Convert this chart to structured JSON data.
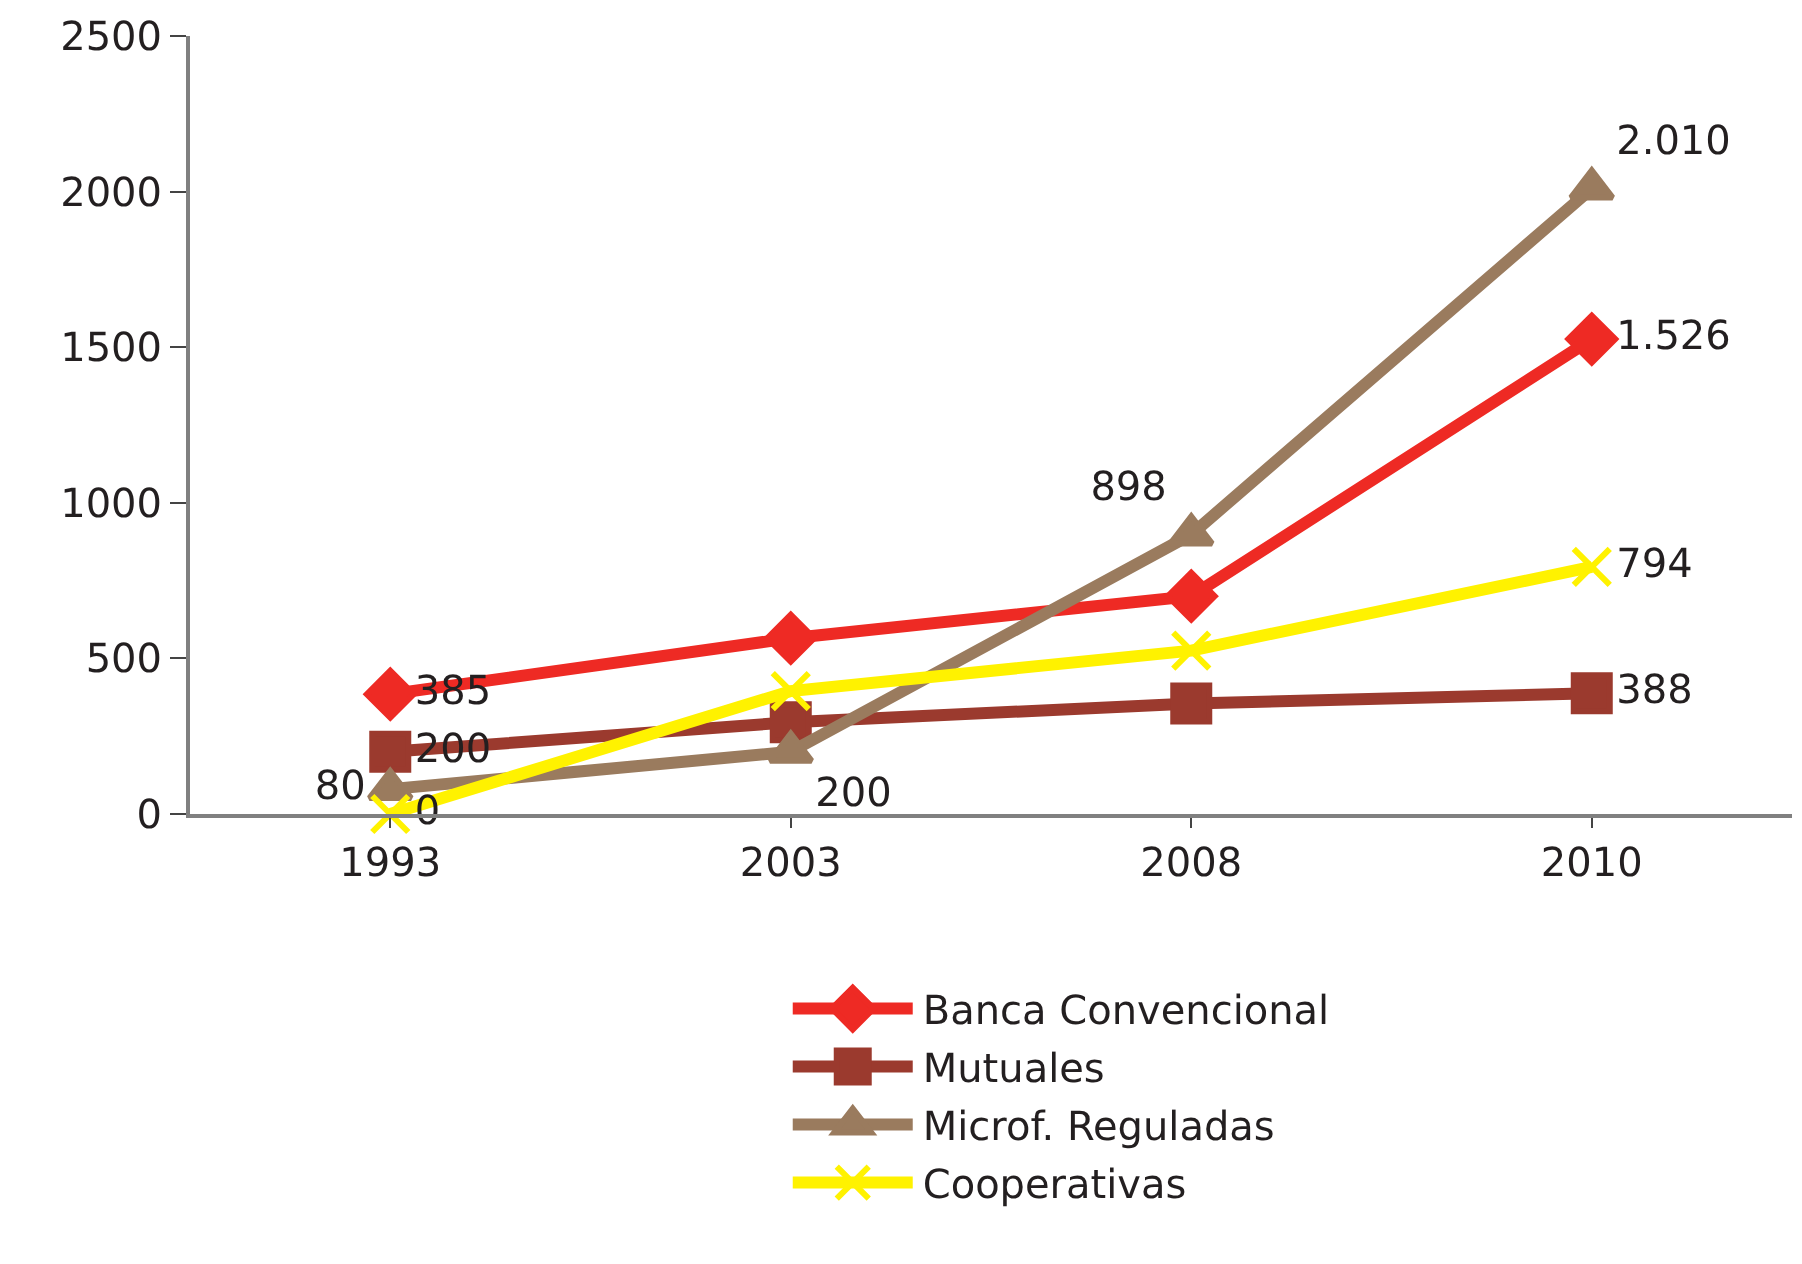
{
  "chart_data": {
    "type": "line",
    "categories": [
      "1993",
      "2003",
      "2008",
      "2010"
    ],
    "series": [
      {
        "name": "Banca Convencional",
        "color": "#ee2a24",
        "marker": "diamond",
        "values": [
          385,
          565,
          700,
          1526
        ],
        "value_labels": [
          "385",
          null,
          null,
          "1.526"
        ]
      },
      {
        "name": "Mutuales",
        "color": "#9b3a2e",
        "marker": "square",
        "values": [
          200,
          295,
          355,
          388
        ],
        "value_labels": [
          "200",
          null,
          null,
          "388"
        ]
      },
      {
        "name": "Microf. Reguladas",
        "color": "#9a7b5e",
        "marker": "triangle",
        "values": [
          80,
          200,
          898,
          2010
        ],
        "value_labels": [
          "80",
          "200",
          "898",
          "2.010"
        ]
      },
      {
        "name": "Cooperativas",
        "color": "#fff200",
        "marker": "cross",
        "values": [
          0,
          395,
          525,
          794
        ],
        "value_labels": [
          "0",
          null,
          null,
          "794"
        ]
      }
    ],
    "ylim": [
      0,
      2500
    ],
    "yticks": [
      0,
      500,
      1000,
      1500,
      2000,
      2500
    ],
    "legend": "bottom"
  }
}
